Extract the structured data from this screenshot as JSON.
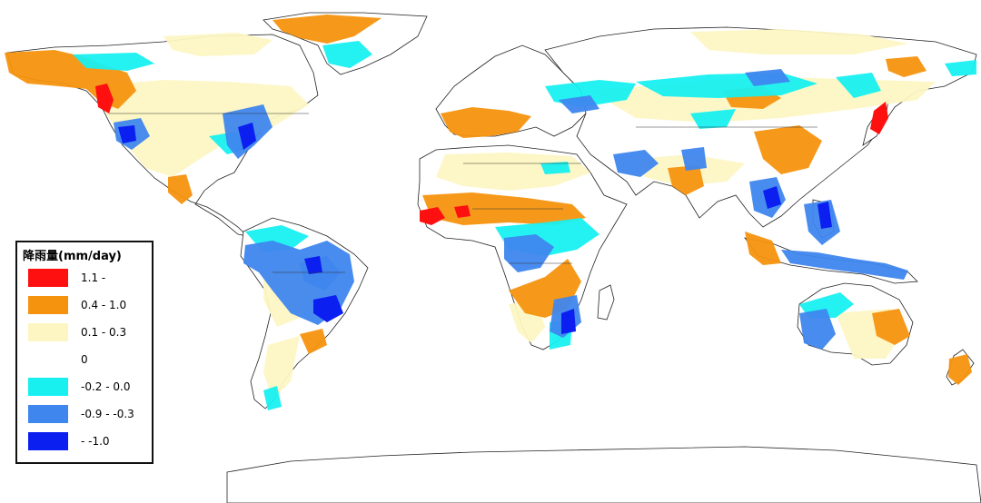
{
  "legend": {
    "title": "降雨量(mm/day)",
    "items": [
      {
        "label": "1.1 -",
        "color": "#ff1010"
      },
      {
        "label": "0.4 - 1.0",
        "color": "#f5930f"
      },
      {
        "label": "0.1 - 0.3",
        "color": "#fdf6c3"
      },
      {
        "label": "0",
        "color": "#ffffff"
      },
      {
        "label": "-0.2 - 0.0",
        "color": "#18f0f0"
      },
      {
        "label": "-0.9 - -0.3",
        "color": "#3f86ee"
      },
      {
        "label": "- -1.0",
        "color": "#0a1ff0"
      }
    ]
  },
  "colors": {
    "land_outline": "#222222",
    "neutral_land": "#ffffff",
    "ocean": "#ffffff"
  }
}
